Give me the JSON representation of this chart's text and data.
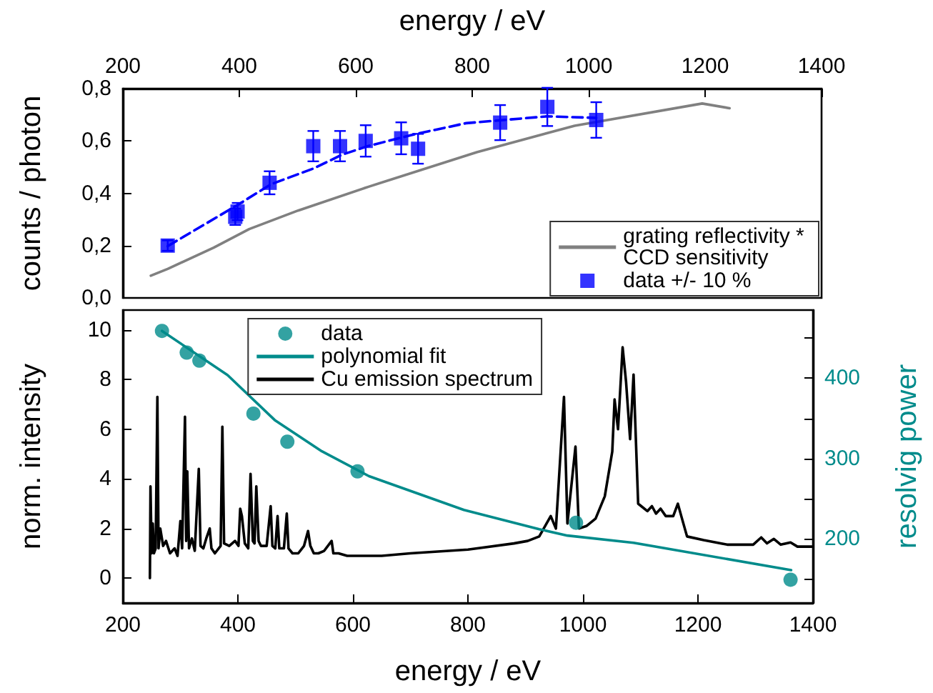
{
  "chart_data": [
    {
      "type": "line",
      "ylabel": "counts / photon",
      "xlabel": "energy / eV",
      "xlim": [
        200,
        1400
      ],
      "xticks": [
        200,
        400,
        600,
        800,
        1000,
        1200,
        1400
      ],
      "ylim": [
        0,
        0.8
      ],
      "yticks": [
        {
          "value": 0,
          "label": "0,0"
        },
        {
          "value": 0.2,
          "label": "0,2"
        },
        {
          "value": 0.4,
          "label": "0,4"
        },
        {
          "value": 0.6,
          "label": "0,6"
        },
        {
          "value": 0.8,
          "label": "0,8"
        }
      ],
      "legend": "bottom right",
      "series": [
        {
          "name": "grating reflectivity * CCD sensitivity",
          "type": "line",
          "color": "#808080",
          "marker": "none",
          "x": [
            248,
            277,
            356,
            417,
            501,
            622,
            808,
            976,
            1195,
            1242
          ],
          "values": [
            0.085,
            0.111,
            0.192,
            0.263,
            0.334,
            0.425,
            0.557,
            0.658,
            0.743,
            0.725
          ]
        },
        {
          "type": "line",
          "color": "#0000ff",
          "line_style": "dashed",
          "marker": "none",
          "x": [
            277,
            396,
            455,
            529,
            576,
            622,
            706,
            790,
            929,
            1013
          ],
          "values": [
            0.198,
            0.354,
            0.435,
            0.496,
            0.547,
            0.581,
            0.628,
            0.668,
            0.694,
            0.688
          ]
        },
        {
          "name": "data +/- 10 %",
          "type": "scatter",
          "color": "#0000ff",
          "marker": "square",
          "x": [
            277,
            393,
            397,
            452,
            527,
            573,
            617,
            678,
            707,
            848,
            929,
            1013
          ],
          "values": [
            0.2,
            0.31,
            0.33,
            0.44,
            0.58,
            0.58,
            0.6,
            0.61,
            0.57,
            0.67,
            0.73,
            0.68
          ],
          "errors": [
            0.02,
            0.031,
            0.033,
            0.044,
            0.058,
            0.058,
            0.06,
            0.061,
            0.057,
            0.067,
            0.073,
            0.068
          ]
        }
      ]
    },
    {
      "type": "line",
      "xlabel": "energy / eV",
      "ylabel": "norm. intensity",
      "y2label": "resolvig power",
      "xlim": [
        200,
        1400
      ],
      "xticks": [
        200,
        400,
        600,
        800,
        1000,
        1200,
        1400
      ],
      "ylim": [
        -1,
        10.8
      ],
      "yticks": [
        0,
        2,
        4,
        6,
        8,
        10
      ],
      "y2lim": [
        120,
        485
      ],
      "y2ticks": [
        {
          "value": 150,
          "label": null
        },
        200,
        {
          "value": 250,
          "label": null
        },
        300,
        {
          "value": 350,
          "label": null
        },
        400,
        {
          "value": 450,
          "label": null
        }
      ],
      "legend": "top",
      "series": [
        {
          "name": "Cu emission spectrum",
          "type": "line",
          "color": "#000000",
          "marker": "none",
          "x": [
            247,
            248,
            250,
            252,
            254,
            257,
            260,
            262,
            265,
            270,
            275,
            282,
            290,
            295,
            300,
            303,
            308,
            310,
            312,
            315,
            320,
            325,
            332,
            335,
            340,
            345,
            351,
            354,
            360,
            370,
            373,
            376,
            385,
            395,
            401,
            404,
            407,
            412,
            418,
            422,
            426,
            429,
            432,
            436,
            440,
            450,
            457,
            460,
            465,
            469,
            472,
            480,
            485,
            488,
            495,
            505,
            515,
            522,
            526,
            532,
            540,
            550,
            563,
            566,
            575,
            590,
            600,
            650,
            700,
            800,
            880,
            904,
            924,
            944,
            953,
            967,
            973,
            987,
            993,
            1006,
            1022,
            1038,
            1051,
            1055,
            1061,
            1069,
            1075,
            1082,
            1088,
            1096,
            1112,
            1120,
            1127,
            1135,
            1144,
            1157,
            1165,
            1171,
            1181,
            1210,
            1251,
            1296,
            1310,
            1320,
            1332,
            1344,
            1361,
            1373,
            1398
          ],
          "values": [
            0,
            3.7,
            1.0,
            2.2,
            1.0,
            1.2,
            7.3,
            1.2,
            2.0,
            1.3,
            1.5,
            1.0,
            1.2,
            0.9,
            2.3,
            1.2,
            6.5,
            1.5,
            4.3,
            1.2,
            1.6,
            1.1,
            4.4,
            1.3,
            1.2,
            1.6,
            2.0,
            1.2,
            1.0,
            1.3,
            6.1,
            1.4,
            1.3,
            1.5,
            1.3,
            2.8,
            2.5,
            1.4,
            1.2,
            4.2,
            1.5,
            1.4,
            3.7,
            1.5,
            1.3,
            1.3,
            2.9,
            1.3,
            1.2,
            2.5,
            1.2,
            1.2,
            2.6,
            1.2,
            1.0,
            1.0,
            1.3,
            1.9,
            1.3,
            1.0,
            1.0,
            1.1,
            1.5,
            1.0,
            1.0,
            0.9,
            0.9,
            0.9,
            1.0,
            1.15,
            1.4,
            1.5,
            1.68,
            2.5,
            2.0,
            7.3,
            2.2,
            5.3,
            2.0,
            2.1,
            2.4,
            3.3,
            5.1,
            7.2,
            6.0,
            9.3,
            7.9,
            5.6,
            8.2,
            3.0,
            2.7,
            2.9,
            2.6,
            2.8,
            2.5,
            2.5,
            3.0,
            2.5,
            1.68,
            1.53,
            1.35,
            1.35,
            1.64,
            1.4,
            1.58,
            1.35,
            1.44,
            1.27,
            1.27
          ]
        },
        {
          "name": "data",
          "type": "scatter",
          "axis": "y2",
          "color": "#008b8b",
          "marker": "circle",
          "x": [
            268,
            311,
            333,
            427,
            486,
            608,
            988,
            1361
          ],
          "values": [
            459,
            432,
            422,
            356,
            321,
            284,
            220,
            149
          ]
        },
        {
          "name": "polynomial fit",
          "type": "line",
          "axis": "y2",
          "color": "#008b8b",
          "marker": "none",
          "x": [
            268,
            382,
            464,
            546,
            628,
            793,
            924,
            973,
            1088,
            1362
          ],
          "values": [
            459,
            404,
            348,
            309,
            278,
            236,
            212,
            204,
            195,
            161
          ]
        }
      ]
    }
  ]
}
